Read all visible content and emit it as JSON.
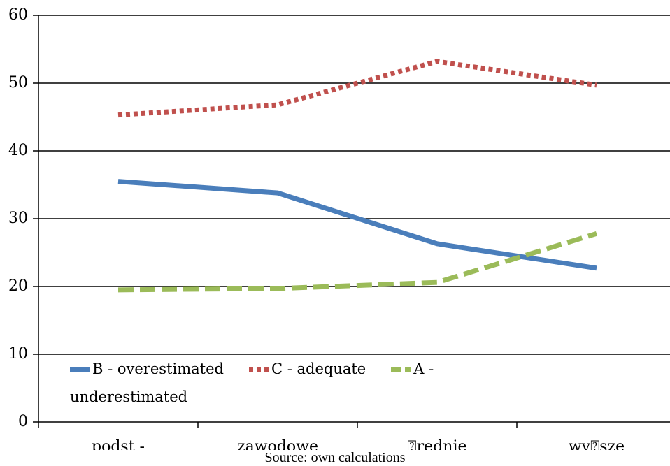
{
  "chart_data": {
    "type": "line",
    "categories": [
      "podst -",
      "zawodowe",
      "⍰rednie",
      "wy⍰sze"
    ],
    "series": [
      {
        "name": "B - overestimated",
        "color": "#4a7ebb",
        "style": "solid",
        "values": [
          35.5,
          33.8,
          26.3,
          22.7
        ]
      },
      {
        "name": "C - adequate",
        "color": "#c0504d",
        "style": "dotted",
        "values": [
          45.3,
          46.8,
          53.2,
          49.7
        ]
      },
      {
        "name": "A - underestimated",
        "color": "#9bbb59",
        "style": "dashed",
        "values": [
          19.5,
          19.7,
          20.6,
          27.8
        ]
      }
    ],
    "ylim": [
      0,
      60
    ],
    "yticks": [
      0,
      10,
      20,
      30,
      40,
      50,
      60
    ],
    "grid": true,
    "legend": "bottom"
  },
  "caption": "Source: own calculations"
}
